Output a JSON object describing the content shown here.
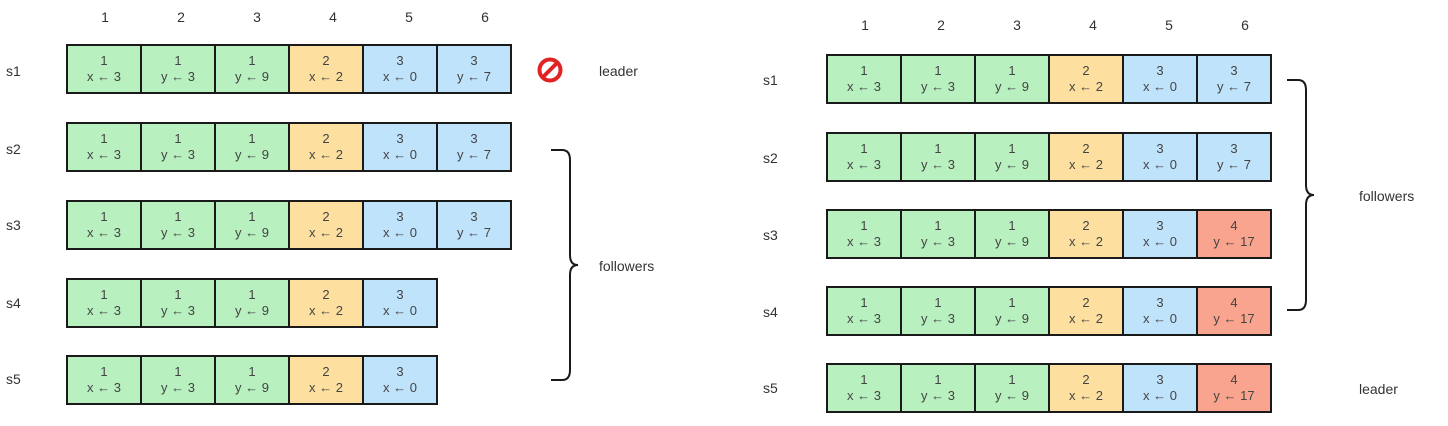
{
  "columns": [
    "1",
    "2",
    "3",
    "4",
    "5",
    "6"
  ],
  "before": {
    "rows": [
      {
        "server": "s1",
        "entries": [
          {
            "term": "1",
            "cmd": "x ← 3"
          },
          {
            "term": "1",
            "cmd": "y ← 3"
          },
          {
            "term": "1",
            "cmd": "y ← 9"
          },
          {
            "term": "2",
            "cmd": "x ← 2"
          },
          {
            "term": "3",
            "cmd": "x ← 0"
          },
          {
            "term": "3",
            "cmd": "y ← 7"
          }
        ]
      },
      {
        "server": "s2",
        "entries": [
          {
            "term": "1",
            "cmd": "x ← 3"
          },
          {
            "term": "1",
            "cmd": "y ← 3"
          },
          {
            "term": "1",
            "cmd": "y ← 9"
          },
          {
            "term": "2",
            "cmd": "x ← 2"
          },
          {
            "term": "3",
            "cmd": "x ← 0"
          },
          {
            "term": "3",
            "cmd": "y ← 7"
          }
        ]
      },
      {
        "server": "s3",
        "entries": [
          {
            "term": "1",
            "cmd": "x ← 3"
          },
          {
            "term": "1",
            "cmd": "y ← 3"
          },
          {
            "term": "1",
            "cmd": "y ← 9"
          },
          {
            "term": "2",
            "cmd": "x ← 2"
          },
          {
            "term": "3",
            "cmd": "x ← 0"
          },
          {
            "term": "3",
            "cmd": "y ← 7"
          }
        ]
      },
      {
        "server": "s4",
        "entries": [
          {
            "term": "1",
            "cmd": "x ← 3"
          },
          {
            "term": "1",
            "cmd": "y ← 3"
          },
          {
            "term": "1",
            "cmd": "y ← 9"
          },
          {
            "term": "2",
            "cmd": "x ← 2"
          },
          {
            "term": "3",
            "cmd": "x ← 0"
          }
        ]
      },
      {
        "server": "s5",
        "entries": [
          {
            "term": "1",
            "cmd": "x ← 3"
          },
          {
            "term": "1",
            "cmd": "y ← 3"
          },
          {
            "term": "1",
            "cmd": "y ← 9"
          },
          {
            "term": "2",
            "cmd": "x ← 2"
          },
          {
            "term": "3",
            "cmd": "x ← 0"
          }
        ]
      }
    ],
    "leader_label": "leader",
    "followers_label": "followers",
    "leader_icon": "stop-icon"
  },
  "after": {
    "rows": [
      {
        "server": "s1",
        "entries": [
          {
            "term": "1",
            "cmd": "x ← 3"
          },
          {
            "term": "1",
            "cmd": "y ← 3"
          },
          {
            "term": "1",
            "cmd": "y ← 9"
          },
          {
            "term": "2",
            "cmd": "x ← 2"
          },
          {
            "term": "3",
            "cmd": "x ← 0"
          },
          {
            "term": "3",
            "cmd": "y ← 7"
          }
        ]
      },
      {
        "server": "s2",
        "entries": [
          {
            "term": "1",
            "cmd": "x ← 3"
          },
          {
            "term": "1",
            "cmd": "y ← 3"
          },
          {
            "term": "1",
            "cmd": "y ← 9"
          },
          {
            "term": "2",
            "cmd": "x ← 2"
          },
          {
            "term": "3",
            "cmd": "x ← 0"
          },
          {
            "term": "3",
            "cmd": "y ← 7"
          }
        ]
      },
      {
        "server": "s3",
        "entries": [
          {
            "term": "1",
            "cmd": "x ← 3"
          },
          {
            "term": "1",
            "cmd": "y ← 3"
          },
          {
            "term": "1",
            "cmd": "y ← 9"
          },
          {
            "term": "2",
            "cmd": "x ← 2"
          },
          {
            "term": "3",
            "cmd": "x ← 0"
          },
          {
            "term": "4",
            "cmd": "y ← 17"
          }
        ]
      },
      {
        "server": "s4",
        "entries": [
          {
            "term": "1",
            "cmd": "x ← 3"
          },
          {
            "term": "1",
            "cmd": "y ← 3"
          },
          {
            "term": "1",
            "cmd": "y ← 9"
          },
          {
            "term": "2",
            "cmd": "x ← 2"
          },
          {
            "term": "3",
            "cmd": "x ← 0"
          },
          {
            "term": "4",
            "cmd": "y ← 17"
          }
        ]
      },
      {
        "server": "s5",
        "entries": [
          {
            "term": "1",
            "cmd": "x ← 3"
          },
          {
            "term": "1",
            "cmd": "y ← 3"
          },
          {
            "term": "1",
            "cmd": "y ← 9"
          },
          {
            "term": "2",
            "cmd": "x ← 2"
          },
          {
            "term": "3",
            "cmd": "x ← 0"
          },
          {
            "term": "4",
            "cmd": "y ← 17"
          }
        ]
      }
    ],
    "leader_label": "leader",
    "followers_label": "followers"
  },
  "term_colors": {
    "1": "#b8f0c0",
    "2": "#fddfa0",
    "3": "#bfe3fb",
    "4": "#f8a48e"
  }
}
